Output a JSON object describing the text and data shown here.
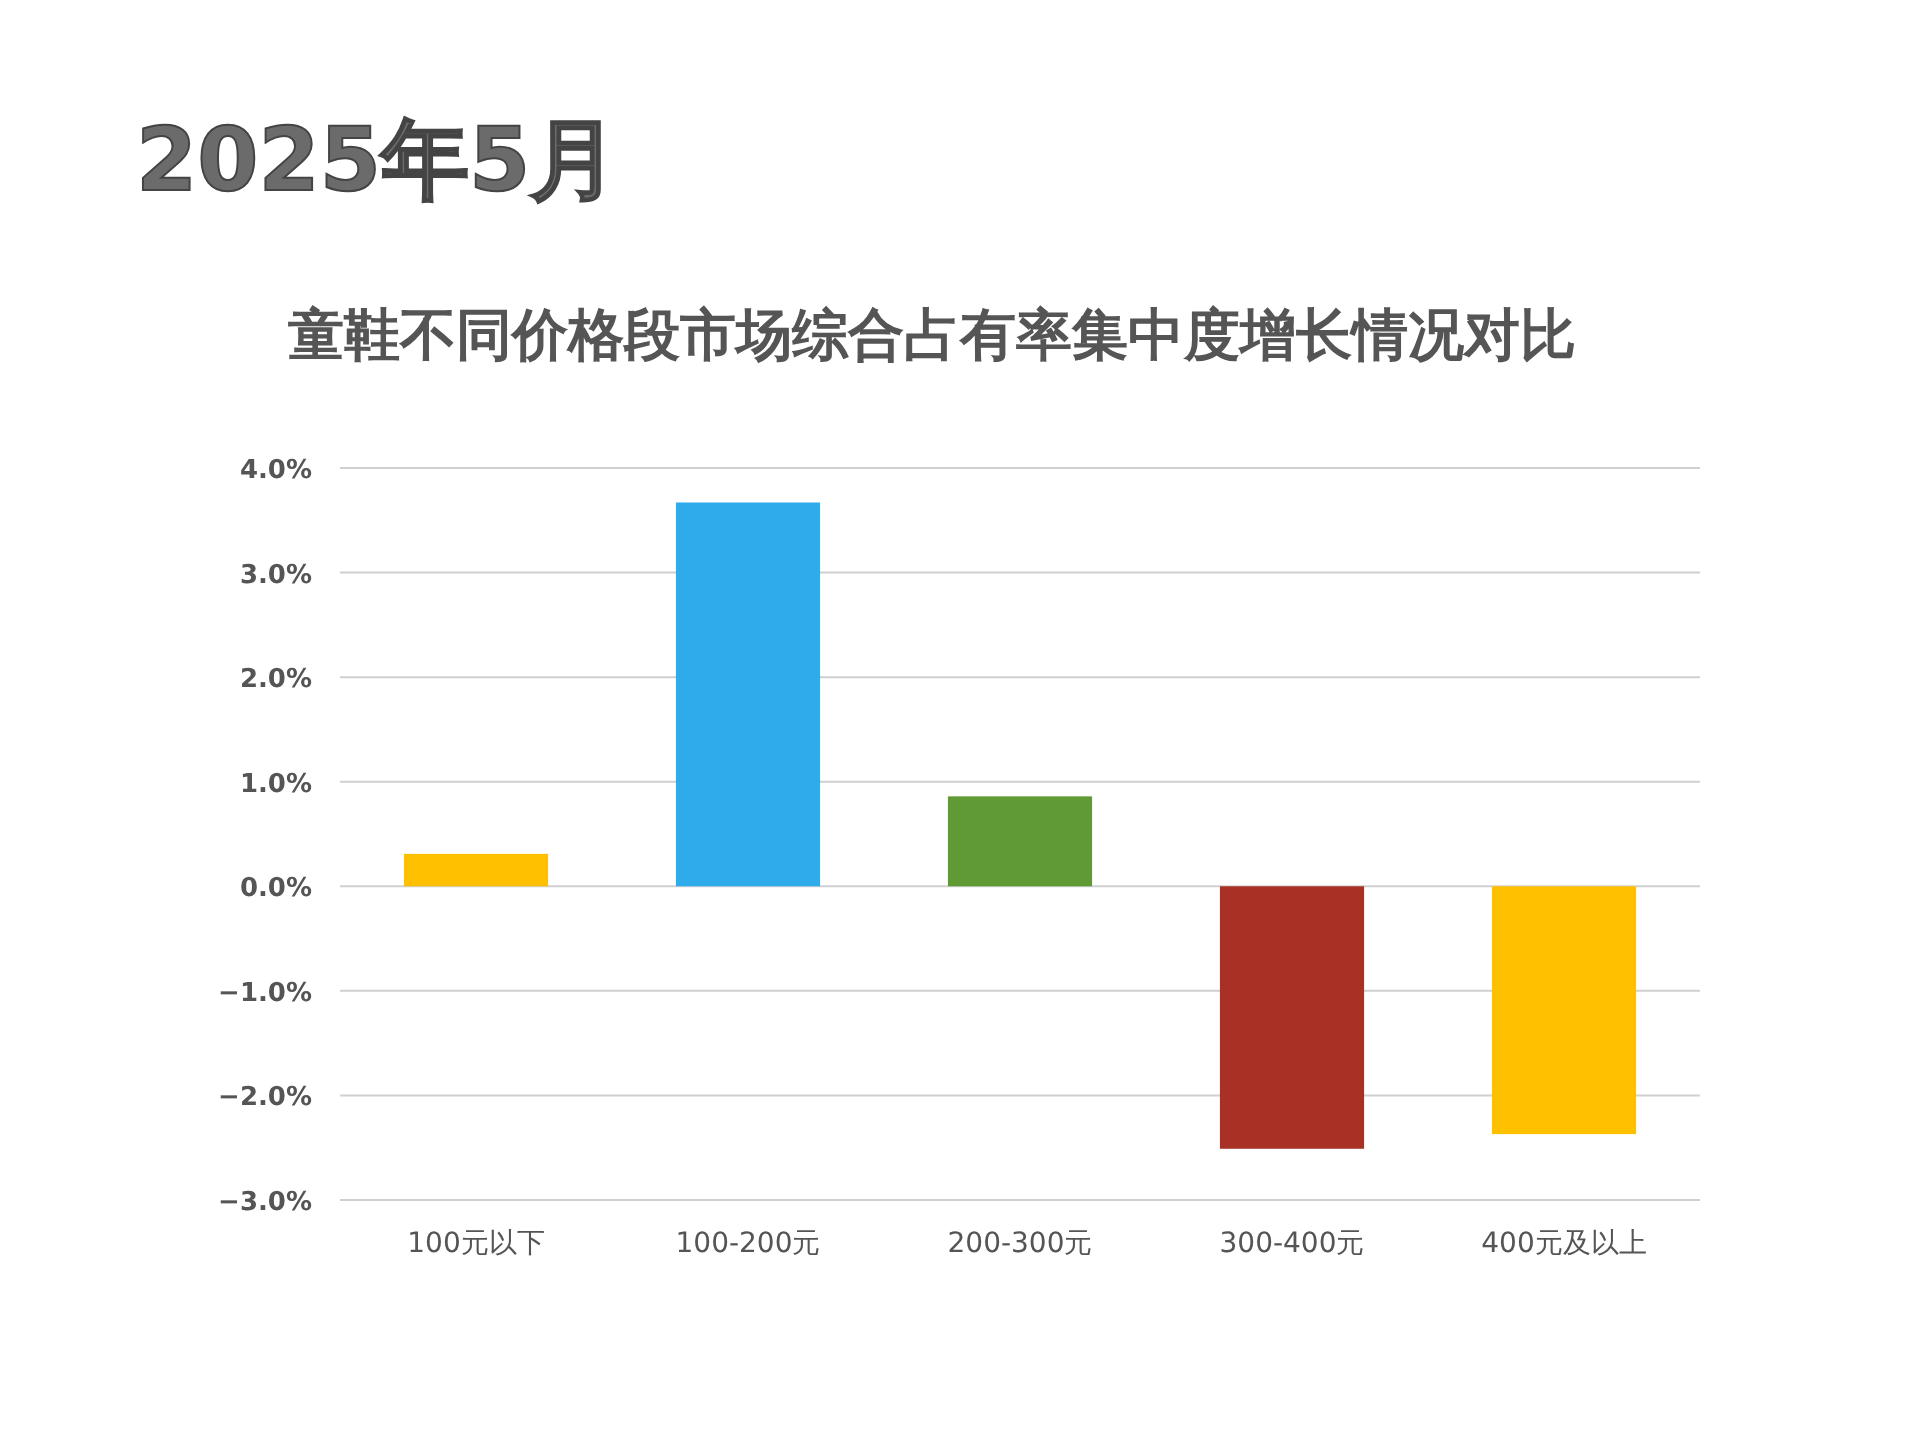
{
  "chart_data": {
    "type": "bar",
    "title": "童鞋不同价格段市场综合占有率集中度增长情况对比",
    "subtitle": "2025年5月",
    "categories": [
      "100元以下",
      "100-200元",
      "200-300元",
      "300-400元",
      "400元及以上"
    ],
    "values": [
      0.31,
      3.67,
      0.86,
      -2.51,
      -2.37
    ],
    "colors": [
      "#ffc000",
      "#2eabea",
      "#5f9a34",
      "#a93024",
      "#ffc000"
    ],
    "ylim": [
      -3,
      4
    ],
    "yticks": [
      {
        "value": -3,
        "label": "−3.0%"
      },
      {
        "value": -2,
        "label": "−2.0%"
      },
      {
        "value": -1,
        "label": "−1.0%"
      },
      {
        "value": 0,
        "label": "0.0%"
      },
      {
        "value": 1,
        "label": "1.0%"
      },
      {
        "value": 2,
        "label": "2.0%"
      },
      {
        "value": 3,
        "label": "3.0%"
      },
      {
        "value": 4,
        "label": "4.0%"
      }
    ],
    "grid": "y"
  }
}
